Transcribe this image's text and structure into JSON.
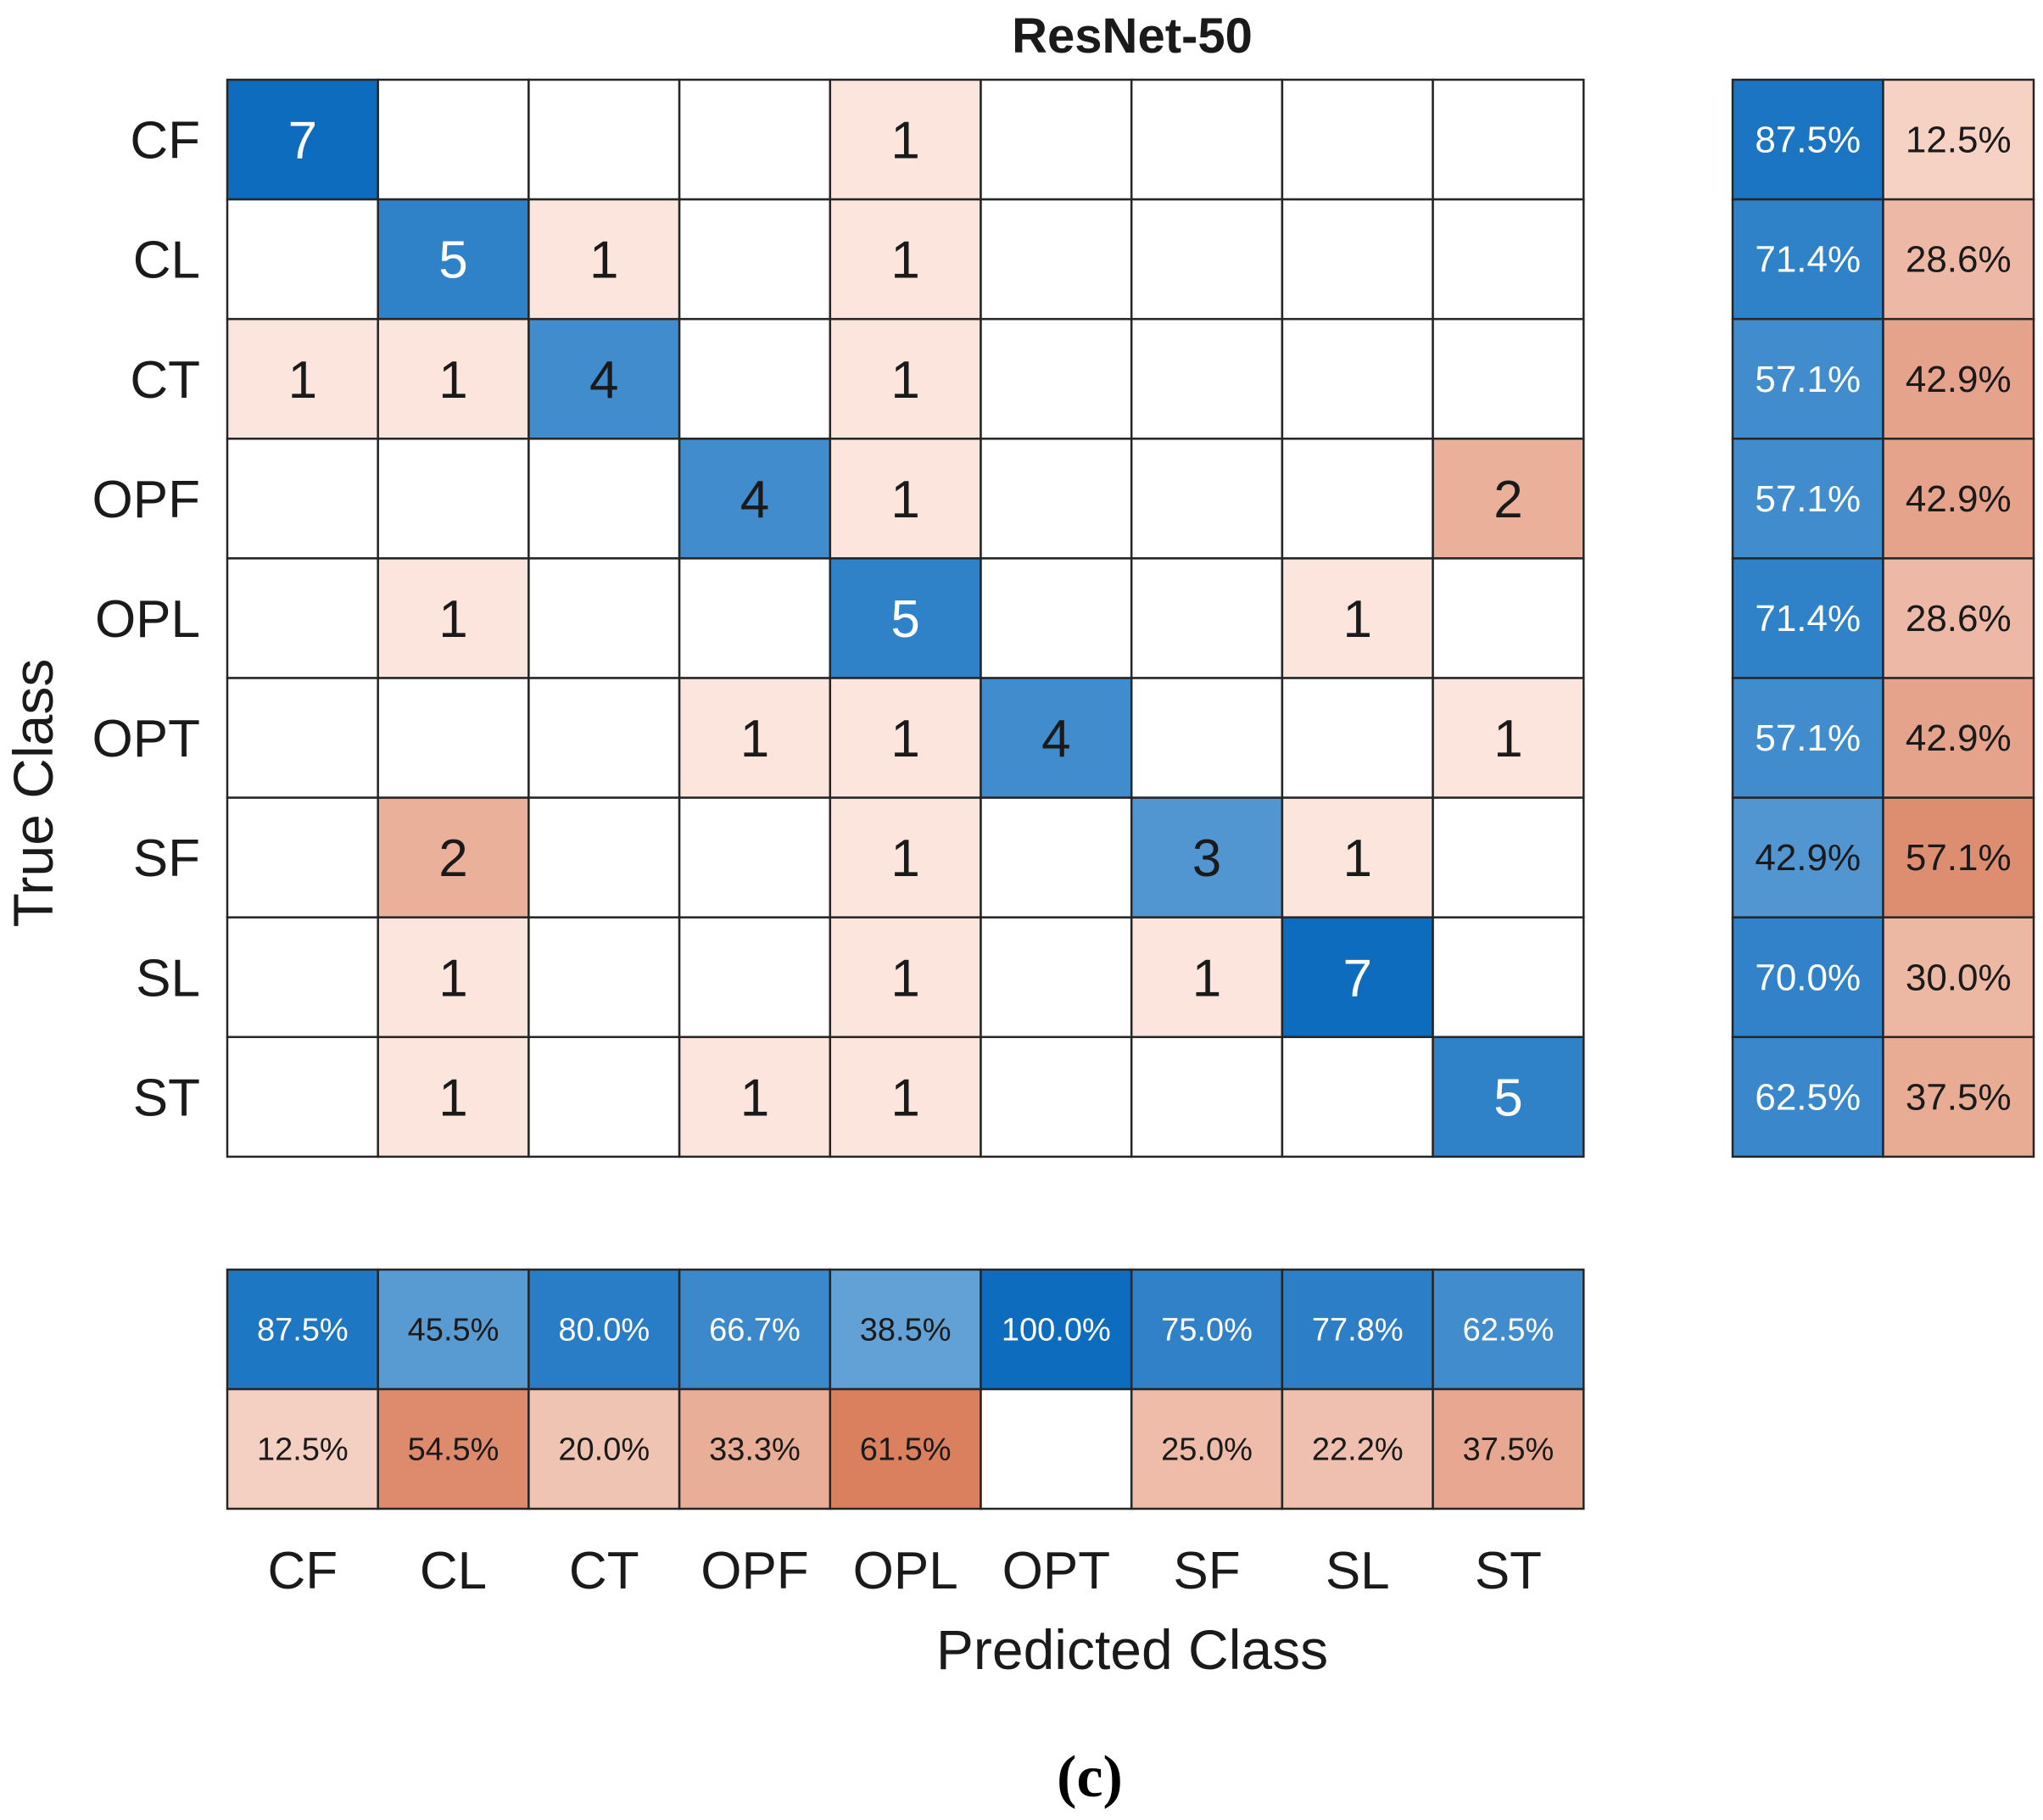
{
  "chart_data": {
    "type": "heatmap",
    "title": "ResNet-50",
    "xlabel": "Predicted Class",
    "ylabel": "True Class",
    "caption": "(c)",
    "classes": [
      "CF",
      "CL",
      "CT",
      "OPF",
      "OPL",
      "OPT",
      "SF",
      "SL",
      "ST"
    ],
    "matrix": [
      [
        7,
        0,
        0,
        0,
        1,
        0,
        0,
        0,
        0
      ],
      [
        0,
        5,
        1,
        0,
        1,
        0,
        0,
        0,
        0
      ],
      [
        1,
        1,
        4,
        0,
        1,
        0,
        0,
        0,
        0
      ],
      [
        0,
        0,
        0,
        4,
        1,
        0,
        0,
        0,
        2
      ],
      [
        0,
        1,
        0,
        0,
        5,
        0,
        0,
        1,
        0
      ],
      [
        0,
        0,
        0,
        1,
        1,
        4,
        0,
        0,
        1
      ],
      [
        0,
        2,
        0,
        0,
        1,
        0,
        3,
        1,
        0
      ],
      [
        0,
        1,
        0,
        0,
        1,
        0,
        1,
        7,
        0
      ],
      [
        0,
        1,
        0,
        1,
        1,
        0,
        0,
        0,
        5
      ]
    ],
    "row_summary": {
      "correct": [
        "87.5%",
        "71.4%",
        "57.1%",
        "57.1%",
        "71.4%",
        "57.1%",
        "42.9%",
        "70.0%",
        "62.5%"
      ],
      "incorrect": [
        "12.5%",
        "28.6%",
        "42.9%",
        "42.9%",
        "28.6%",
        "42.9%",
        "57.1%",
        "30.0%",
        "37.5%"
      ]
    },
    "column_summary": {
      "correct": [
        "87.5%",
        "45.5%",
        "80.0%",
        "66.7%",
        "38.5%",
        "100.0%",
        "75.0%",
        "77.8%",
        "62.5%"
      ],
      "incorrect": [
        "12.5%",
        "54.5%",
        "20.0%",
        "33.3%",
        "61.5%",
        "",
        "25.0%",
        "22.2%",
        "37.5%"
      ]
    },
    "colors": {
      "correct_strong": "#0d6cbe",
      "correct_light": "#c5def2",
      "error_strong": "#d87a58",
      "error_light": "#fbe5dc",
      "grid": "#262626",
      "text_dark": "#1a1a1a",
      "text_light": "#ffffff"
    }
  }
}
